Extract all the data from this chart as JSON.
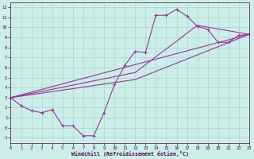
{
  "background_color": "#cceee8",
  "line_color": "#993399",
  "grid_color": "#aad5cc",
  "xlabel": "Windchill (Refroidissement éolien,°C)",
  "xlim": [
    0,
    23
  ],
  "ylim": [
    -1.5,
    12.5
  ],
  "xticks": [
    0,
    1,
    2,
    3,
    4,
    5,
    6,
    7,
    8,
    9,
    10,
    11,
    12,
    13,
    14,
    15,
    16,
    17,
    18,
    19,
    20,
    21,
    22,
    23
  ],
  "yticks": [
    -1,
    0,
    1,
    2,
    3,
    4,
    5,
    6,
    7,
    8,
    9,
    10,
    11,
    12
  ],
  "zigzag": {
    "x": [
      0,
      1,
      2,
      3,
      4,
      5,
      6,
      7,
      8,
      9,
      10,
      11,
      12,
      13,
      14,
      15,
      16,
      17,
      18,
      19,
      20,
      21,
      22,
      23
    ],
    "y": [
      3.0,
      2.2,
      1.7,
      1.5,
      1.8,
      0.2,
      0.2,
      -0.8,
      -0.8,
      1.5,
      4.3,
      6.2,
      7.6,
      7.5,
      11.2,
      11.2,
      11.8,
      11.1,
      10.1,
      9.8,
      8.5,
      8.5,
      9.2,
      9.3
    ]
  },
  "smooth1": {
    "x": [
      0,
      23
    ],
    "y": [
      3.0,
      9.3
    ]
  },
  "smooth2": {
    "x": [
      0,
      12,
      23
    ],
    "y": [
      3.0,
      4.8,
      9.3
    ]
  },
  "smooth3": {
    "x": [
      0,
      12,
      18,
      23
    ],
    "y": [
      3.0,
      5.5,
      10.2,
      9.3
    ]
  }
}
